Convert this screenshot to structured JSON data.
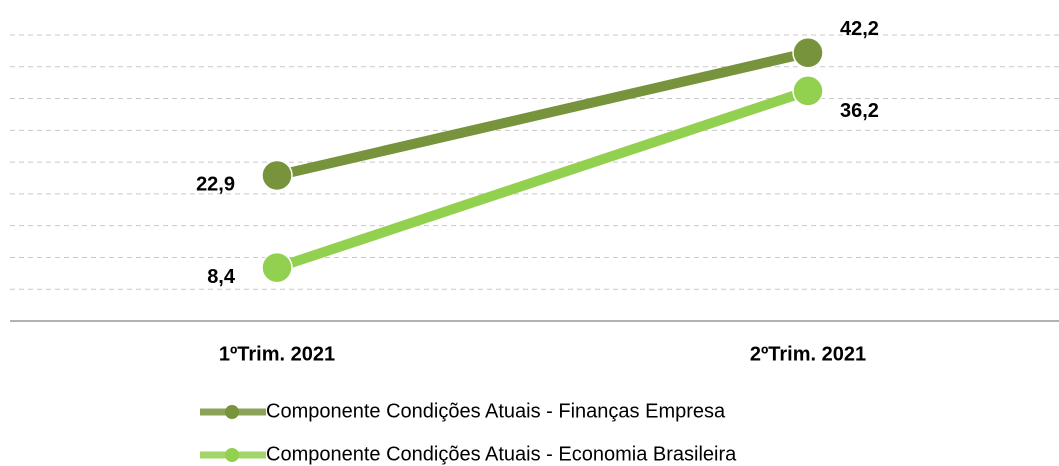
{
  "chart_data": {
    "type": "line",
    "categories": [
      "1ºTrim. 2021",
      "2ºTrim. 2021"
    ],
    "series": [
      {
        "name": "Componente Condições Atuais - Finanças Empresa",
        "color": "#77933c",
        "values": [
          22.9,
          42.2
        ],
        "value_labels": [
          "22,9",
          "42,2"
        ]
      },
      {
        "name": "Componente Condições Atuais - Economia Brasileira",
        "color": "#92d050",
        "values": [
          8.4,
          36.2
        ],
        "value_labels": [
          "8,4",
          "36,2"
        ]
      }
    ],
    "ylim": [
      0,
      45
    ],
    "yticks": [
      0,
      5,
      10,
      15,
      20,
      25,
      30,
      35,
      40,
      45
    ],
    "grid": true,
    "legend": "bottom"
  }
}
